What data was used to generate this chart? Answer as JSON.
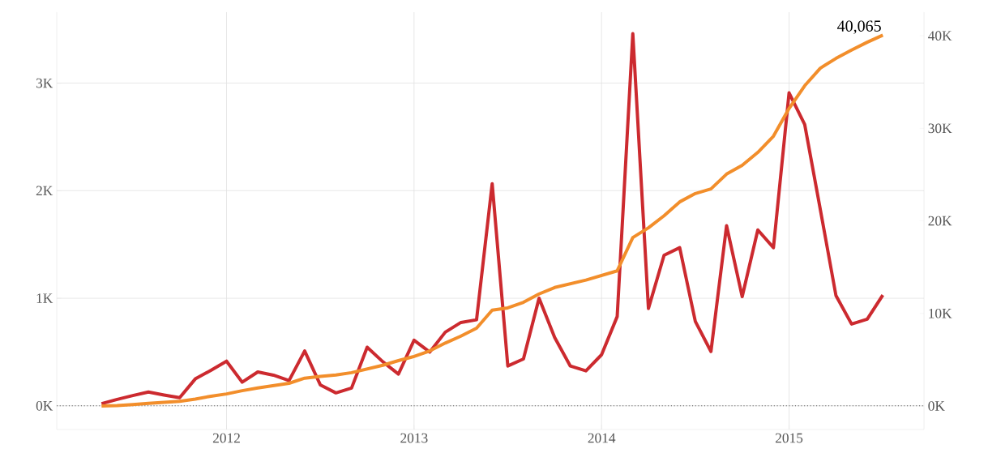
{
  "chart_data": {
    "type": "line",
    "x": [
      "2011-05",
      "2011-06",
      "2011-07",
      "2011-08",
      "2011-09",
      "2011-10",
      "2011-11",
      "2011-12",
      "2012-01",
      "2012-02",
      "2012-03",
      "2012-04",
      "2012-05",
      "2012-06",
      "2012-07",
      "2012-08",
      "2012-09",
      "2012-10",
      "2012-11",
      "2012-12",
      "2013-01",
      "2013-02",
      "2013-03",
      "2013-04",
      "2013-05",
      "2013-06",
      "2013-07",
      "2013-08",
      "2013-09",
      "2013-10",
      "2013-11",
      "2013-12",
      "2014-01",
      "2014-02",
      "2014-03",
      "2014-04",
      "2014-05",
      "2014-06",
      "2014-07",
      "2014-08",
      "2014-09",
      "2014-10",
      "2014-11",
      "2014-12",
      "2015-01",
      "2015-02",
      "2015-03",
      "2015-04",
      "2015-05",
      "2015-06",
      "2015-07"
    ],
    "series": [
      {
        "color": "#cc2a2f",
        "values": [
          20,
          60,
          95,
          128,
          100,
          75,
          250,
          330,
          415,
          220,
          315,
          285,
          235,
          510,
          195,
          120,
          165,
          545,
          410,
          295,
          610,
          500,
          685,
          775,
          800,
          2065,
          370,
          435,
          1000,
          635,
          370,
          325,
          475,
          830,
          3460,
          905,
          1400,
          1470,
          785,
          505,
          1675,
          1015,
          1635,
          1470,
          2910,
          2615,
          1825,
          1025,
          760,
          805,
          1030
        ]
      },
      {
        "color": "#f28e2b",
        "axis": "y2",
        "values": [
          0,
          50,
          150,
          280,
          400,
          500,
          750,
          1050,
          1300,
          1650,
          1950,
          2200,
          2450,
          3000,
          3200,
          3350,
          3600,
          4000,
          4400,
          4900,
          5350,
          5950,
          6800,
          7550,
          8400,
          10350,
          10600,
          11200,
          12100,
          12800,
          13200,
          13600,
          14100,
          14600,
          18200,
          19250,
          20550,
          22050,
          22950,
          23450,
          25050,
          26000,
          27400,
          29150,
          32150,
          34600,
          36500,
          37550,
          38450,
          39300,
          40065
        ],
        "value_labels": [
          null,
          null,
          null,
          null,
          null,
          null,
          null,
          null,
          null,
          null,
          null,
          null,
          null,
          null,
          null,
          null,
          null,
          null,
          null,
          null,
          null,
          null,
          null,
          null,
          null,
          null,
          null,
          null,
          null,
          null,
          null,
          null,
          null,
          null,
          null,
          null,
          null,
          null,
          null,
          null,
          null,
          null,
          null,
          null,
          null,
          null,
          null,
          null,
          null,
          null,
          "40,065"
        ]
      }
    ],
    "xlim": [
      "2011-02-05",
      "2015-09-20"
    ],
    "xticks": [
      {
        "value": "2012",
        "label": "2012"
      },
      {
        "value": "2013",
        "label": "2013"
      },
      {
        "value": "2014",
        "label": "2014"
      },
      {
        "value": "2015",
        "label": "2015"
      }
    ],
    "ylim": [
      -220,
      3660
    ],
    "yticks": [
      {
        "value": 0,
        "label": "0K"
      },
      {
        "value": 1000,
        "label": "1K"
      },
      {
        "value": 2000,
        "label": "2K"
      },
      {
        "value": 3000,
        "label": "3K"
      }
    ],
    "y2lim": [
      -2540,
      42550
    ],
    "y2ticks": [
      {
        "value": 0,
        "label": "0K"
      },
      {
        "value": 10000,
        "label": "10K"
      },
      {
        "value": 20000,
        "label": "20K"
      },
      {
        "value": 30000,
        "label": "30K"
      },
      {
        "value": 40000,
        "label": "40K"
      }
    ],
    "ref_lines": [
      {
        "axis": "y",
        "value": 0,
        "color": "#555555",
        "line_style": "dotted"
      }
    ],
    "grid": true
  }
}
